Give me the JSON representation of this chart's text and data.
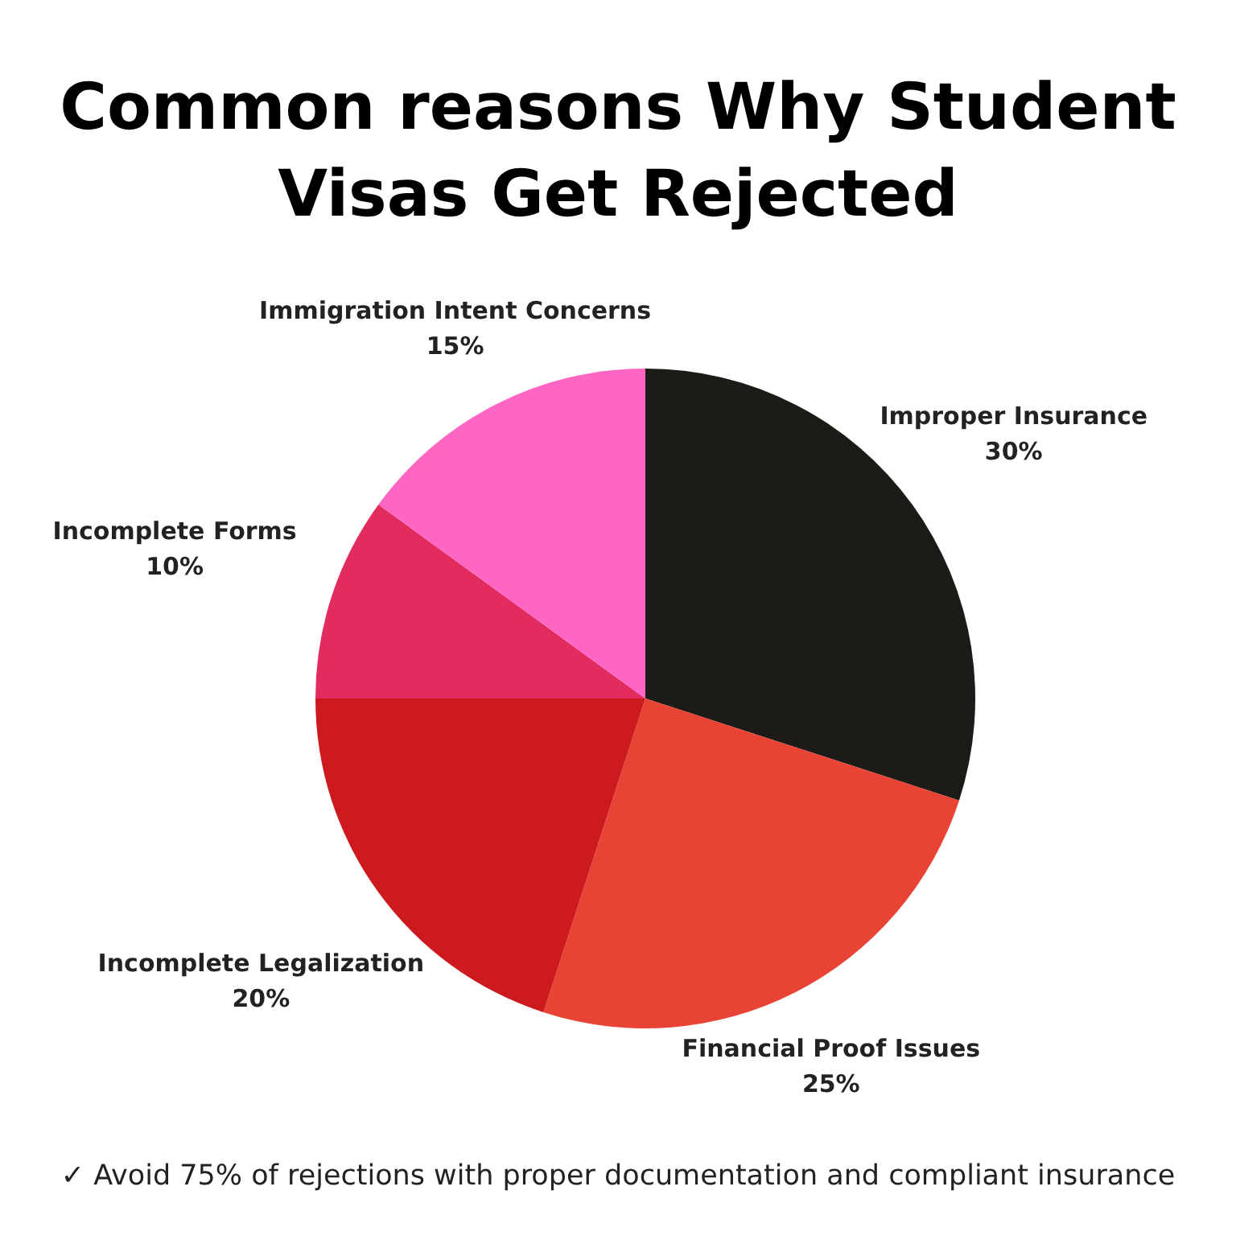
{
  "chart_data": {
    "type": "pie",
    "title": "Common reasons Why Student Visas Get Rejected",
    "categories": [
      "Improper Insurance",
      "Financial Proof Issues",
      "Incomplete Legalization",
      "Incomplete Forms",
      "Immigration Intent Concerns"
    ],
    "values": [
      30,
      25,
      20,
      10,
      15
    ],
    "value_labels": [
      "30%",
      "25%",
      "20%",
      "10%",
      "15%"
    ],
    "colors": [
      "#1c1b17",
      "#e94335",
      "#cc1a1e",
      "#e22b5f",
      "#ff66c4"
    ],
    "annotations": [
      "✓ Avoid 75% of rejections with proper documentation and compliant insurance"
    ]
  }
}
